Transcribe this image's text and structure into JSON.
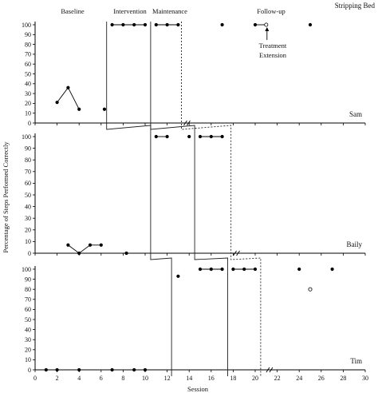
{
  "chart_data": {
    "type": "scatter",
    "title": "Stripping Bed",
    "xlabel": "Session",
    "ylabel": "Percentage of Steps Performed Correctly",
    "xlim": [
      0,
      30
    ],
    "ylim": [
      0,
      100
    ],
    "x_ticks": [
      "0",
      "2",
      "4",
      "6",
      "8",
      "10",
      "12",
      "14",
      "16",
      "18",
      "20",
      "22",
      "24",
      "26",
      "28",
      "30"
    ],
    "y_ticks": [
      "0",
      "10",
      "20",
      "30",
      "40",
      "50",
      "60",
      "70",
      "80",
      "90",
      "100"
    ],
    "phase_labels": [
      "Baseline",
      "Intervention",
      "Maintenance",
      "Follow-up"
    ],
    "annotation": {
      "line1": "Treatment",
      "line2": "Extension"
    },
    "panels": [
      {
        "participant": "Sam",
        "phase_changes": {
          "intervention_start": 6.5,
          "maintenance_start": 10.5,
          "followup_start": 13.3
        },
        "connected_segments": [
          [
            [
              2,
              21
            ],
            [
              3,
              36
            ],
            [
              4,
              14
            ]
          ],
          [
            [
              7,
              100
            ],
            [
              8,
              100
            ],
            [
              9,
              100
            ],
            [
              10,
              100
            ]
          ],
          [
            [
              11,
              100
            ],
            [
              12,
              100
            ],
            [
              13,
              100
            ]
          ],
          [
            [
              20,
              100
            ],
            [
              21,
              100
            ]
          ]
        ],
        "points": [
          {
            "x": 6.3,
            "y": 14,
            "filled": true
          },
          {
            "x": 17,
            "y": 100,
            "filled": true
          },
          {
            "x": 25,
            "y": 100,
            "filled": true
          },
          {
            "x": 21,
            "y": 100,
            "filled": false
          }
        ]
      },
      {
        "participant": "Baily",
        "phase_changes": {
          "intervention_start": 10.5,
          "maintenance_start": 14.5,
          "followup_start": 17.8
        },
        "connected_segments": [
          [
            [
              3,
              7
            ],
            [
              4,
              0
            ],
            [
              5,
              7
            ],
            [
              6,
              7
            ]
          ],
          [
            [
              11,
              100
            ],
            [
              12,
              100
            ]
          ],
          [
            [
              15,
              100
            ],
            [
              16,
              100
            ],
            [
              17,
              100
            ]
          ]
        ],
        "points": [
          {
            "x": 8.3,
            "y": 0,
            "filled": true
          },
          {
            "x": 14,
            "y": 100,
            "filled": true
          }
        ]
      },
      {
        "participant": "Tim",
        "phase_changes": {
          "intervention_start": 12.4,
          "maintenance_start": 17.5,
          "followup_start": 20.5
        },
        "connected_segments": [
          [
            [
              1,
              0
            ],
            [
              2,
              0
            ]
          ],
          [
            [
              15,
              100
            ],
            [
              16,
              100
            ],
            [
              17,
              100
            ]
          ],
          [
            [
              18,
              100
            ],
            [
              19,
              100
            ],
            [
              20,
              100
            ]
          ]
        ],
        "points": [
          {
            "x": 4,
            "y": 0,
            "filled": true
          },
          {
            "x": 7,
            "y": 0,
            "filled": true
          },
          {
            "x": 9,
            "y": 0,
            "filled": true
          },
          {
            "x": 10,
            "y": 0,
            "filled": true
          },
          {
            "x": 13,
            "y": 93,
            "filled": true
          },
          {
            "x": 24,
            "y": 100,
            "filled": true
          },
          {
            "x": 27,
            "y": 100,
            "filled": true
          },
          {
            "x": 25,
            "y": 80,
            "filled": false
          }
        ]
      }
    ]
  }
}
